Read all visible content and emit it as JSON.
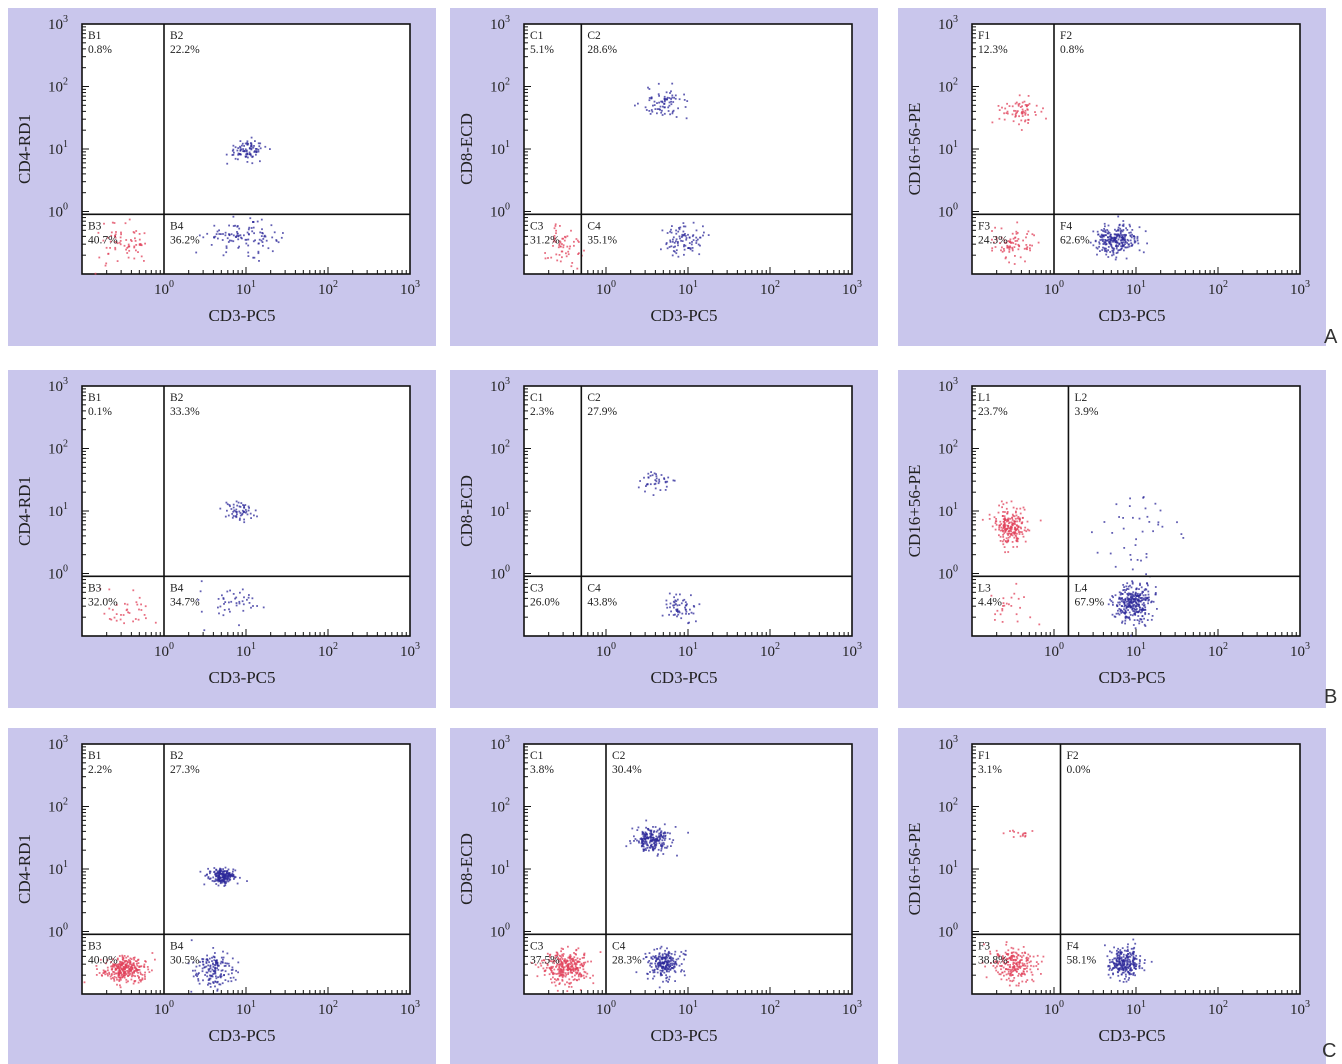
{
  "figure": {
    "row_labels": [
      "A",
      "B",
      "C"
    ],
    "colors": {
      "panel_bg": "#c9c6ec",
      "plot_bg": "#ffffff",
      "axis": "#111111",
      "red_population": "#e0405a",
      "blue_population": "#2e2a9a",
      "text": "#222222"
    }
  },
  "chart_data": [
    {
      "type": "scatter",
      "row": "A",
      "scale": "log",
      "xlabel": "CD3-PC5",
      "ylabel": "CD4-RD1",
      "xlim": [
        0.1,
        1000
      ],
      "ylim": [
        0.1,
        1000
      ],
      "x_ticks": [
        "10^0",
        "10^1",
        "10^2",
        "10^3"
      ],
      "y_ticks": [
        "10^0",
        "10^1",
        "10^2",
        "10^3"
      ],
      "gate": {
        "x": 1.0,
        "y": 0.9
      },
      "quadrants": [
        {
          "name": "B1",
          "pct": "0.8%",
          "pos": "UL"
        },
        {
          "name": "B2",
          "pct": "22.2%",
          "pos": "UR"
        },
        {
          "name": "B3",
          "pct": "40.7%",
          "pos": "LL"
        },
        {
          "name": "B4",
          "pct": "36.2%",
          "pos": "LR"
        }
      ],
      "clusters": [
        {
          "x": 10,
          "y": 10,
          "spread": [
            0.12,
            0.08
          ],
          "n": 90,
          "color": "blue"
        },
        {
          "x": 9,
          "y": 0.4,
          "spread": [
            0.22,
            0.12
          ],
          "n": 110,
          "color": "blue"
        },
        {
          "x": 0.32,
          "y": 0.3,
          "spread": [
            0.18,
            0.16
          ],
          "n": 70,
          "color": "red"
        }
      ]
    },
    {
      "type": "scatter",
      "row": "A",
      "scale": "log",
      "xlabel": "CD3-PC5",
      "ylabel": "CD8-ECD",
      "xlim": [
        0.1,
        1000
      ],
      "ylim": [
        0.1,
        1000
      ],
      "x_ticks": [
        "10^0",
        "10^1",
        "10^2",
        "10^3"
      ],
      "y_ticks": [
        "10^0",
        "10^1",
        "10^2",
        "10^3"
      ],
      "gate": {
        "x": 0.5,
        "y": 0.9
      },
      "quadrants": [
        {
          "name": "C1",
          "pct": "5.1%",
          "pos": "UL"
        },
        {
          "name": "C2",
          "pct": "28.6%",
          "pos": "UR"
        },
        {
          "name": "C3",
          "pct": "31.2%",
          "pos": "LL"
        },
        {
          "name": "C4",
          "pct": "35.1%",
          "pos": "LR"
        }
      ],
      "clusters": [
        {
          "x": 5,
          "y": 55,
          "spread": [
            0.15,
            0.12
          ],
          "n": 80,
          "color": "blue"
        },
        {
          "x": 9,
          "y": 0.35,
          "spread": [
            0.12,
            0.14
          ],
          "n": 90,
          "color": "blue"
        },
        {
          "x": 0.3,
          "y": 0.3,
          "spread": [
            0.1,
            0.18
          ],
          "n": 60,
          "color": "red"
        }
      ]
    },
    {
      "type": "scatter",
      "row": "A",
      "scale": "log",
      "xlabel": "CD3-PC5",
      "ylabel": "CD16+56-PE",
      "xlim": [
        0.1,
        1000
      ],
      "ylim": [
        0.1,
        1000
      ],
      "x_ticks": [
        "10^0",
        "10^1",
        "10^2",
        "10^3"
      ],
      "y_ticks": [
        "10^0",
        "10^1",
        "10^2",
        "10^3"
      ],
      "gate": {
        "x": 1.0,
        "y": 0.9
      },
      "quadrants": [
        {
          "name": "F1",
          "pct": "12.3%",
          "pos": "UL"
        },
        {
          "name": "F2",
          "pct": "0.8%",
          "pos": "UR"
        },
        {
          "name": "F3",
          "pct": "24.3%",
          "pos": "LL"
        },
        {
          "name": "F4",
          "pct": "62.6%",
          "pos": "LR"
        }
      ],
      "clusters": [
        {
          "x": 0.35,
          "y": 40,
          "spread": [
            0.12,
            0.1
          ],
          "n": 70,
          "color": "red"
        },
        {
          "x": 5.5,
          "y": 0.35,
          "spread": [
            0.13,
            0.13
          ],
          "n": 260,
          "color": "blue"
        },
        {
          "x": 0.3,
          "y": 0.32,
          "spread": [
            0.15,
            0.15
          ],
          "n": 80,
          "color": "red"
        }
      ]
    },
    {
      "type": "scatter",
      "row": "B",
      "scale": "log",
      "xlabel": "CD3-PC5",
      "ylabel": "CD4-RD1",
      "xlim": [
        0.1,
        1000
      ],
      "ylim": [
        0.1,
        1000
      ],
      "x_ticks": [
        "10^0",
        "10^1",
        "10^2",
        "10^3"
      ],
      "y_ticks": [
        "10^0",
        "10^1",
        "10^2",
        "10^3"
      ],
      "gate": {
        "x": 1.0,
        "y": 0.9
      },
      "quadrants": [
        {
          "name": "B1",
          "pct": "0.1%",
          "pos": "UL"
        },
        {
          "name": "B2",
          "pct": "33.3%",
          "pos": "UR"
        },
        {
          "name": "B3",
          "pct": "32.0%",
          "pos": "LL"
        },
        {
          "name": "B4",
          "pct": "34.7%",
          "pos": "LR"
        }
      ],
      "clusters": [
        {
          "x": 8,
          "y": 10,
          "spread": [
            0.1,
            0.08
          ],
          "n": 60,
          "color": "blue"
        },
        {
          "x": 7,
          "y": 0.35,
          "spread": [
            0.2,
            0.14
          ],
          "n": 45,
          "color": "blue"
        },
        {
          "x": 0.35,
          "y": 0.25,
          "spread": [
            0.18,
            0.14
          ],
          "n": 35,
          "color": "red"
        }
      ]
    },
    {
      "type": "scatter",
      "row": "B",
      "scale": "log",
      "xlabel": "CD3-PC5",
      "ylabel": "CD8-ECD",
      "xlim": [
        0.1,
        1000
      ],
      "ylim": [
        0.1,
        1000
      ],
      "x_ticks": [
        "10^0",
        "10^1",
        "10^2",
        "10^3"
      ],
      "y_ticks": [
        "10^0",
        "10^1",
        "10^2",
        "10^3"
      ],
      "gate": {
        "x": 0.5,
        "y": 0.9
      },
      "quadrants": [
        {
          "name": "C1",
          "pct": "2.3%",
          "pos": "UL"
        },
        {
          "name": "C2",
          "pct": "27.9%",
          "pos": "UR"
        },
        {
          "name": "C3",
          "pct": "26.0%",
          "pos": "LL"
        },
        {
          "name": "C4",
          "pct": "43.8%",
          "pos": "LR"
        }
      ],
      "clusters": [
        {
          "x": 4,
          "y": 30,
          "spread": [
            0.1,
            0.08
          ],
          "n": 40,
          "color": "blue"
        },
        {
          "x": 8,
          "y": 0.3,
          "spread": [
            0.1,
            0.13
          ],
          "n": 60,
          "color": "blue"
        }
      ]
    },
    {
      "type": "scatter",
      "row": "B",
      "scale": "log",
      "xlabel": "CD3-PC5",
      "ylabel": "CD16+56-PE",
      "xlim": [
        0.1,
        1000
      ],
      "ylim": [
        0.1,
        1000
      ],
      "x_ticks": [
        "10^0",
        "10^1",
        "10^2",
        "10^3"
      ],
      "y_ticks": [
        "10^0",
        "10^1",
        "10^2",
        "10^3"
      ],
      "gate": {
        "x": 1.5,
        "y": 0.9
      },
      "quadrants": [
        {
          "name": "L1",
          "pct": "23.7%",
          "pos": "UL"
        },
        {
          "name": "L2",
          "pct": "3.9%",
          "pos": "UR"
        },
        {
          "name": "L3",
          "pct": "4.4%",
          "pos": "LL"
        },
        {
          "name": "L4",
          "pct": "67.9%",
          "pos": "LR"
        }
      ],
      "clusters": [
        {
          "x": 0.28,
          "y": 6,
          "spread": [
            0.1,
            0.15
          ],
          "n": 220,
          "color": "red"
        },
        {
          "x": 9,
          "y": 0.35,
          "spread": [
            0.12,
            0.15
          ],
          "n": 320,
          "color": "blue"
        },
        {
          "x": 10,
          "y": 4,
          "spread": [
            0.25,
            0.3
          ],
          "n": 40,
          "color": "blue"
        },
        {
          "x": 0.3,
          "y": 0.3,
          "spread": [
            0.15,
            0.15
          ],
          "n": 25,
          "color": "red"
        }
      ]
    },
    {
      "type": "scatter",
      "row": "C",
      "scale": "log",
      "xlabel": "CD3-PC5",
      "ylabel": "CD4-RD1",
      "xlim": [
        0.1,
        1000
      ],
      "ylim": [
        0.1,
        1000
      ],
      "x_ticks": [
        "10^0",
        "10^1",
        "10^2",
        "10^3"
      ],
      "y_ticks": [
        "10^0",
        "10^1",
        "10^2",
        "10^3"
      ],
      "gate": {
        "x": 1.0,
        "y": 0.9
      },
      "quadrants": [
        {
          "name": "B1",
          "pct": "2.2%",
          "pos": "UL"
        },
        {
          "name": "B2",
          "pct": "27.3%",
          "pos": "UR"
        },
        {
          "name": "B3",
          "pct": "40.0%",
          "pos": "LL"
        },
        {
          "name": "B4",
          "pct": "30.5%",
          "pos": "LR"
        }
      ],
      "clusters": [
        {
          "x": 5,
          "y": 8,
          "spread": [
            0.08,
            0.06
          ],
          "n": 200,
          "color": "blue"
        },
        {
          "x": 4,
          "y": 0.25,
          "spread": [
            0.14,
            0.14
          ],
          "n": 160,
          "color": "blue"
        },
        {
          "x": 0.32,
          "y": 0.25,
          "spread": [
            0.13,
            0.1
          ],
          "n": 300,
          "color": "red"
        }
      ]
    },
    {
      "type": "scatter",
      "row": "C",
      "scale": "log",
      "xlabel": "CD3-PC5",
      "ylabel": "CD8-ECD",
      "xlim": [
        0.1,
        1000
      ],
      "ylim": [
        0.1,
        1000
      ],
      "x_ticks": [
        "10^0",
        "10^1",
        "10^2",
        "10^3"
      ],
      "y_ticks": [
        "10^0",
        "10^1",
        "10^2",
        "10^3"
      ],
      "gate": {
        "x": 1.0,
        "y": 0.9
      },
      "quadrants": [
        {
          "name": "C1",
          "pct": "3.8%",
          "pos": "UL"
        },
        {
          "name": "C2",
          "pct": "30.4%",
          "pos": "UR"
        },
        {
          "name": "C3",
          "pct": "37.5%",
          "pos": "LL"
        },
        {
          "name": "C4",
          "pct": "28.3%",
          "pos": "LR"
        }
      ],
      "clusters": [
        {
          "x": 3.5,
          "y": 30,
          "spread": [
            0.12,
            0.1
          ],
          "n": 220,
          "color": "blue"
        },
        {
          "x": 5,
          "y": 0.3,
          "spread": [
            0.1,
            0.12
          ],
          "n": 220,
          "color": "blue"
        },
        {
          "x": 0.32,
          "y": 0.28,
          "spread": [
            0.14,
            0.13
          ],
          "n": 300,
          "color": "red"
        }
      ]
    },
    {
      "type": "scatter",
      "row": "C",
      "scale": "log",
      "xlabel": "CD3-PC5",
      "ylabel": "CD16+56-PE",
      "xlim": [
        0.1,
        1000
      ],
      "ylim": [
        0.1,
        1000
      ],
      "x_ticks": [
        "10^0",
        "10^1",
        "10^2",
        "10^3"
      ],
      "y_ticks": [
        "10^0",
        "10^1",
        "10^2",
        "10^3"
      ],
      "gate": {
        "x": 1.2,
        "y": 0.9
      },
      "quadrants": [
        {
          "name": "F1",
          "pct": "3.1%",
          "pos": "UL"
        },
        {
          "name": "F2",
          "pct": "0.0%",
          "pos": "UR"
        },
        {
          "name": "F3",
          "pct": "38.8%",
          "pos": "LL"
        },
        {
          "name": "F4",
          "pct": "58.1%",
          "pos": "LR"
        }
      ],
      "clusters": [
        {
          "x": 0.4,
          "y": 40,
          "spread": [
            0.1,
            0.04
          ],
          "n": 15,
          "color": "red"
        },
        {
          "x": 7,
          "y": 0.32,
          "spread": [
            0.1,
            0.12
          ],
          "n": 260,
          "color": "blue"
        },
        {
          "x": 0.32,
          "y": 0.3,
          "spread": [
            0.14,
            0.13
          ],
          "n": 220,
          "color": "red"
        }
      ]
    }
  ]
}
